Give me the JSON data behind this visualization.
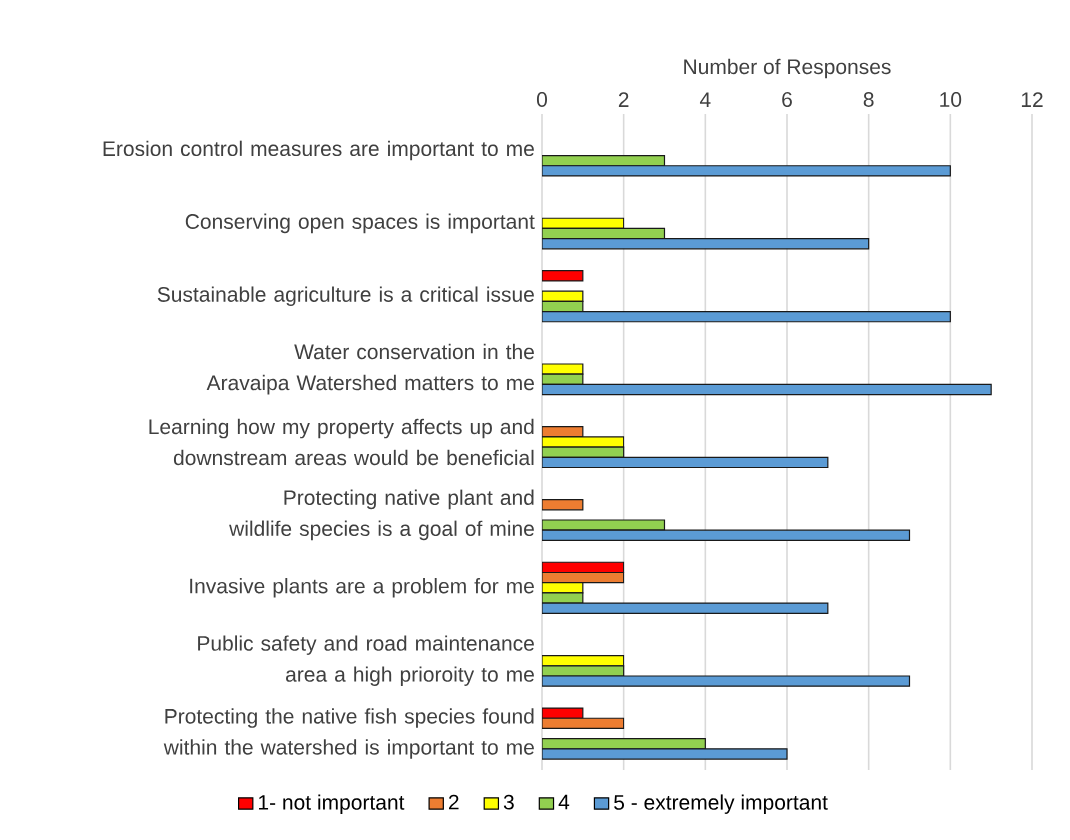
{
  "chart_data": {
    "type": "bar",
    "orientation": "horizontal",
    "xlabel": "Number of Responses",
    "categories": [
      "Erosion control measures are important to me",
      "Conserving open spaces is important",
      "Sustainable agriculture is a critical issue",
      "Water conservation in the Aravaipa Watershed matters to me",
      "Learning how my property affects up and downstream areas would be beneficial",
      "Protecting native plant and wildlife species is a goal of mine",
      "Invasive plants are a problem for me",
      "Public safety and road maintenance area a high prioroity to me",
      "Protecting the native fish species found within the watershed is important to me"
    ],
    "series": [
      {
        "name": "1- not important",
        "color": "#ff0000",
        "values": [
          null,
          null,
          1,
          null,
          null,
          null,
          2,
          null,
          1
        ]
      },
      {
        "name": "2",
        "color": "#ed7d31",
        "values": [
          null,
          null,
          null,
          null,
          1,
          1,
          2,
          null,
          2
        ]
      },
      {
        "name": "3",
        "color": "#ffff00",
        "values": [
          null,
          2,
          1,
          1,
          2,
          null,
          1,
          2,
          null
        ]
      },
      {
        "name": "4",
        "color": "#92d050",
        "values": [
          3,
          3,
          1,
          1,
          2,
          3,
          1,
          2,
          4
        ]
      },
      {
        "name": "5 - extremely important",
        "color": "#5b9bd5",
        "values": [
          10,
          8,
          10,
          11,
          7,
          9,
          7,
          9,
          6
        ]
      }
    ],
    "xlim": [
      0,
      12
    ],
    "xticks": [
      0,
      2,
      4,
      6,
      8,
      10,
      12
    ],
    "grid": "x",
    "legend": "bottom"
  }
}
